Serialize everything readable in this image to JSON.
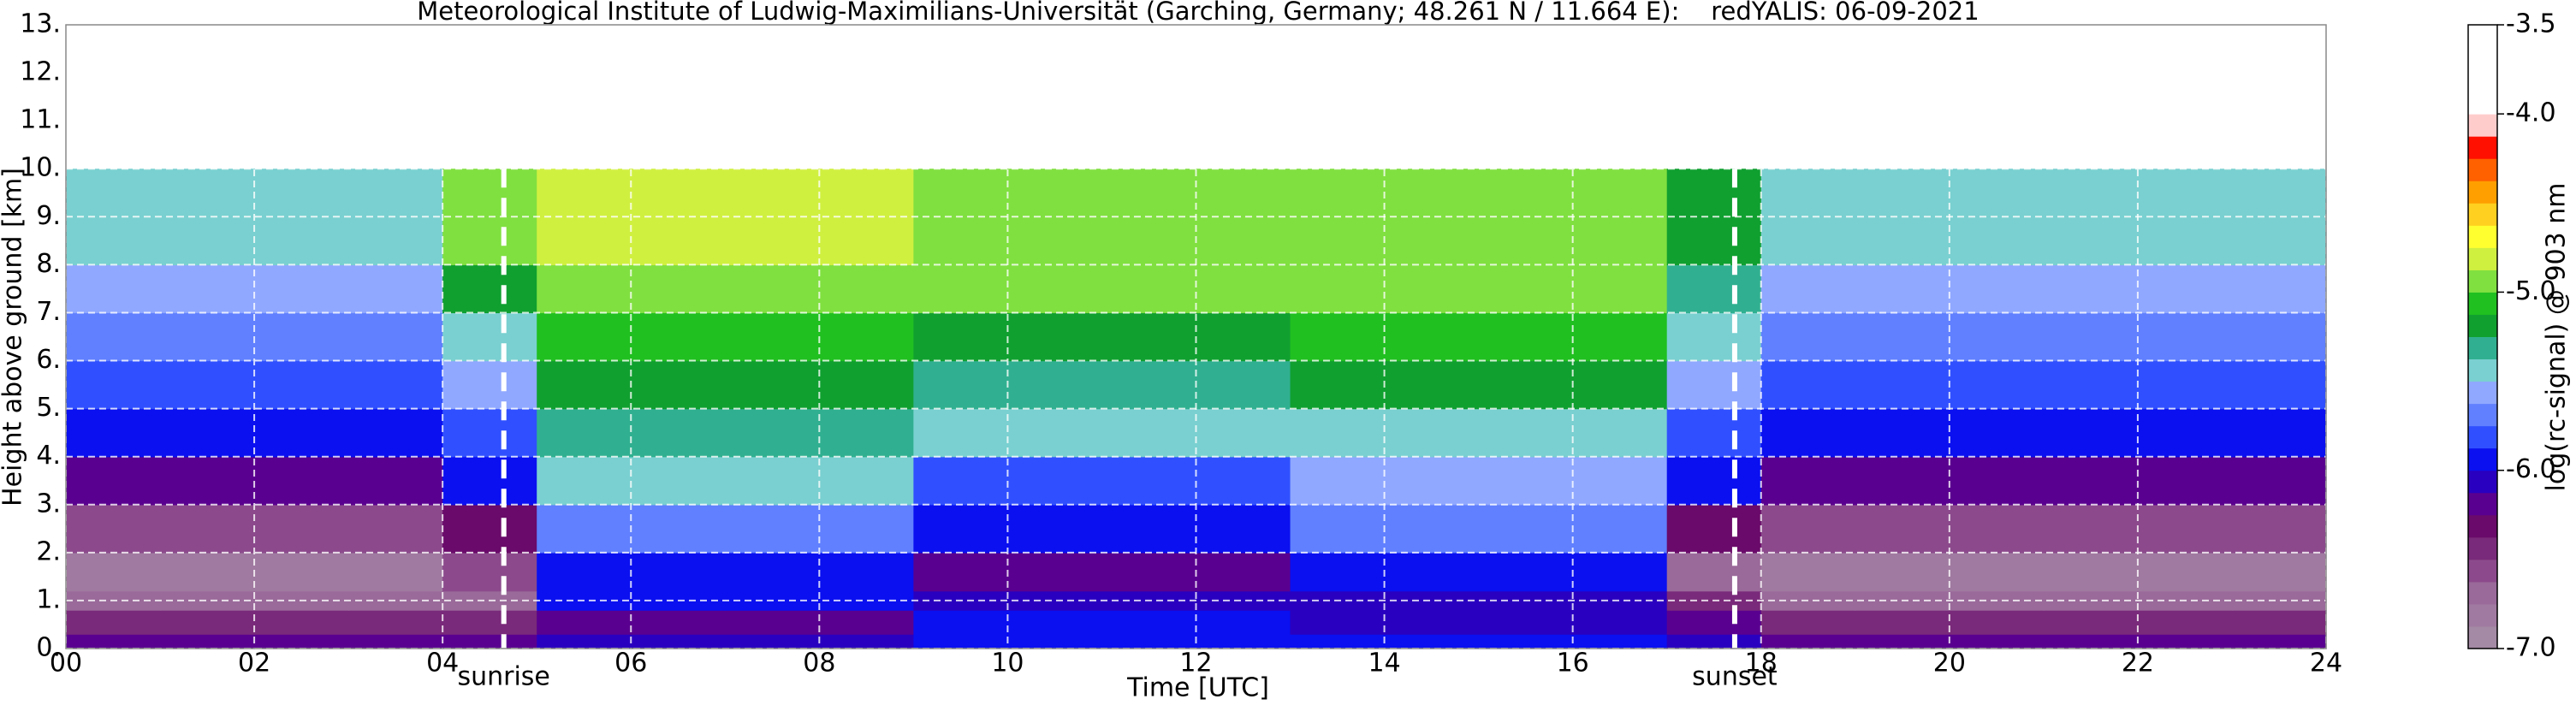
{
  "chart_data": {
    "type": "heatmap",
    "title": "Meteorological Institute of Ludwig-Maximilians-Universität (Garching, Germany; 48.261 N / 11.664 E):    redYALIS: 06-09-2021",
    "x_label": "Time [UTC]",
    "y_label": "Height above ground [km]",
    "colorbar_label": "log(rc-signal) @ 903 nm",
    "xlim": [
      0,
      24
    ],
    "ylim": [
      0,
      13
    ],
    "xticks": [
      {
        "value": 0,
        "label": "00"
      },
      {
        "value": 2,
        "label": "02"
      },
      {
        "value": 4,
        "label": "04"
      },
      {
        "value": 6,
        "label": "06"
      },
      {
        "value": 8,
        "label": "08"
      },
      10,
      12,
      14,
      16,
      18,
      20,
      22,
      24
    ],
    "yticks": [
      {
        "value": 0,
        "label": "0."
      },
      {
        "value": 1,
        "label": "1."
      },
      {
        "value": 2,
        "label": "2."
      },
      {
        "value": 3,
        "label": "3."
      },
      {
        "value": 4,
        "label": "4."
      },
      {
        "value": 5,
        "label": "5."
      },
      {
        "value": 6,
        "label": "6."
      },
      {
        "value": 7,
        "label": "7."
      },
      {
        "value": 8,
        "label": "8."
      },
      {
        "value": 9,
        "label": "9."
      },
      {
        "value": 10,
        "label": "10."
      },
      {
        "value": 11,
        "label": "11."
      },
      {
        "value": 12,
        "label": "12."
      },
      {
        "value": 13,
        "label": "13."
      }
    ],
    "grid": true,
    "clim": [
      -7.0,
      -3.5
    ],
    "cticks": [
      {
        "value": -7.0,
        "label": "-7.0"
      },
      {
        "value": -6.0,
        "label": "-6.0"
      },
      {
        "value": -5.0,
        "label": "-5.0"
      },
      {
        "value": -4.0,
        "label": "-4.0"
      },
      -3.5
    ],
    "colormap": [
      "#a48aa4",
      "#a07aa0",
      "#9a6a9a",
      "#8c4a8c",
      "#7a2a7a",
      "#6a0a6a",
      "#5a0090",
      "#2a00c0",
      "#0a10f0",
      "#3050ff",
      "#6080ff",
      "#90a8ff",
      "#7ad0d0",
      "#30b090",
      "#10a030",
      "#20c020",
      "#80e040",
      "#d0f040",
      "#ffff30",
      "#ffd020",
      "#ffa000",
      "#ff6000",
      "#ff1000",
      "#ffcccc",
      "#ffffff",
      "#ffffff",
      "#ffffff",
      "#ffffff"
    ],
    "annotations": [
      {
        "text": "sunrise",
        "x": 4.65
      },
      {
        "text": "sunset",
        "x": 17.72
      }
    ],
    "x_bins": [
      0,
      1,
      2,
      3,
      4,
      5,
      6,
      7,
      8,
      9,
      10,
      11,
      12,
      13,
      14,
      15,
      16,
      17,
      18,
      19,
      20,
      21,
      22,
      23,
      24
    ],
    "y_bins": [
      0,
      0.3,
      0.8,
      1.2,
      2,
      3,
      4,
      5,
      6,
      7,
      8,
      10
    ],
    "z": [
      [
        -6.2,
        -6.2,
        -6.2,
        -6.2,
        -6.2,
        -6.1,
        -6.1,
        -6.1,
        -6.1,
        -6.0,
        -6.0,
        -6.0,
        -6.0,
        -6.0,
        -6.0,
        -6.0,
        -6.0,
        -6.1,
        -6.2,
        -6.2,
        -6.2,
        -6.2,
        -6.2,
        -6.2
      ],
      [
        -6.45,
        -6.45,
        -6.45,
        -6.45,
        -6.45,
        -6.2,
        -6.2,
        -6.2,
        -6.2,
        -5.95,
        -5.95,
        -5.95,
        -5.95,
        -6.1,
        -6.1,
        -6.1,
        -6.1,
        -6.2,
        -6.45,
        -6.45,
        -6.45,
        -6.45,
        -6.45,
        -6.45
      ],
      [
        -6.7,
        -6.7,
        -6.7,
        -6.7,
        -6.7,
        -6.0,
        -6.0,
        -6.0,
        -6.0,
        -6.1,
        -6.1,
        -6.1,
        -6.1,
        -6.05,
        -6.05,
        -6.05,
        -6.05,
        -6.5,
        -6.7,
        -6.7,
        -6.7,
        -6.7,
        -6.7,
        -6.7
      ],
      [
        -6.85,
        -6.85,
        -6.85,
        -6.85,
        -6.6,
        -5.9,
        -5.9,
        -5.9,
        -5.9,
        -6.2,
        -6.2,
        -6.2,
        -6.2,
        -5.95,
        -5.95,
        -5.95,
        -5.95,
        -6.7,
        -6.85,
        -6.85,
        -6.85,
        -6.85,
        -6.85,
        -6.85
      ],
      [
        -6.6,
        -6.6,
        -6.6,
        -6.6,
        -6.3,
        -5.7,
        -5.7,
        -5.7,
        -5.7,
        -6.0,
        -6.0,
        -6.0,
        -6.0,
        -5.75,
        -5.75,
        -5.75,
        -5.75,
        -6.3,
        -6.6,
        -6.6,
        -6.6,
        -6.6,
        -6.6,
        -6.6
      ],
      [
        -6.2,
        -6.2,
        -6.2,
        -6.2,
        -6.0,
        -5.45,
        -5.45,
        -5.45,
        -5.45,
        -5.8,
        -5.8,
        -5.8,
        -5.8,
        -5.55,
        -5.55,
        -5.55,
        -5.55,
        -6.0,
        -6.2,
        -6.2,
        -6.2,
        -6.2,
        -6.2,
        -6.2
      ],
      [
        -6.0,
        -6.0,
        -6.0,
        -6.0,
        -5.8,
        -5.3,
        -5.3,
        -5.3,
        -5.3,
        -5.5,
        -5.5,
        -5.5,
        -5.5,
        -5.4,
        -5.4,
        -5.4,
        -5.4,
        -5.8,
        -6.0,
        -6.0,
        -6.0,
        -6.0,
        -6.0,
        -6.0
      ],
      [
        -5.85,
        -5.85,
        -5.85,
        -5.85,
        -5.6,
        -5.2,
        -5.2,
        -5.2,
        -5.2,
        -5.35,
        -5.35,
        -5.35,
        -5.35,
        -5.25,
        -5.25,
        -5.25,
        -5.25,
        -5.6,
        -5.85,
        -5.85,
        -5.85,
        -5.85,
        -5.85,
        -5.85
      ],
      [
        -5.7,
        -5.7,
        -5.7,
        -5.7,
        -5.4,
        -5.1,
        -5.1,
        -5.1,
        -5.1,
        -5.2,
        -5.2,
        -5.2,
        -5.2,
        -5.1,
        -5.1,
        -5.1,
        -5.1,
        -5.4,
        -5.7,
        -5.7,
        -5.7,
        -5.7,
        -5.7,
        -5.7
      ],
      [
        -5.6,
        -5.6,
        -5.6,
        -5.6,
        -5.2,
        -4.9,
        -4.9,
        -4.9,
        -4.9,
        -5.0,
        -5.0,
        -5.0,
        -5.0,
        -5.0,
        -5.0,
        -5.0,
        -5.0,
        -5.3,
        -5.6,
        -5.6,
        -5.6,
        -5.6,
        -5.6,
        -5.6
      ],
      [
        -5.5,
        -5.5,
        -5.5,
        -5.5,
        -5.0,
        -4.8,
        -4.8,
        -4.8,
        -4.8,
        -4.9,
        -4.9,
        -4.9,
        -4.9,
        -4.9,
        -4.9,
        -4.9,
        -4.9,
        -5.2,
        -5.5,
        -5.5,
        -5.5,
        -5.5,
        -5.5,
        -5.5
      ]
    ]
  }
}
